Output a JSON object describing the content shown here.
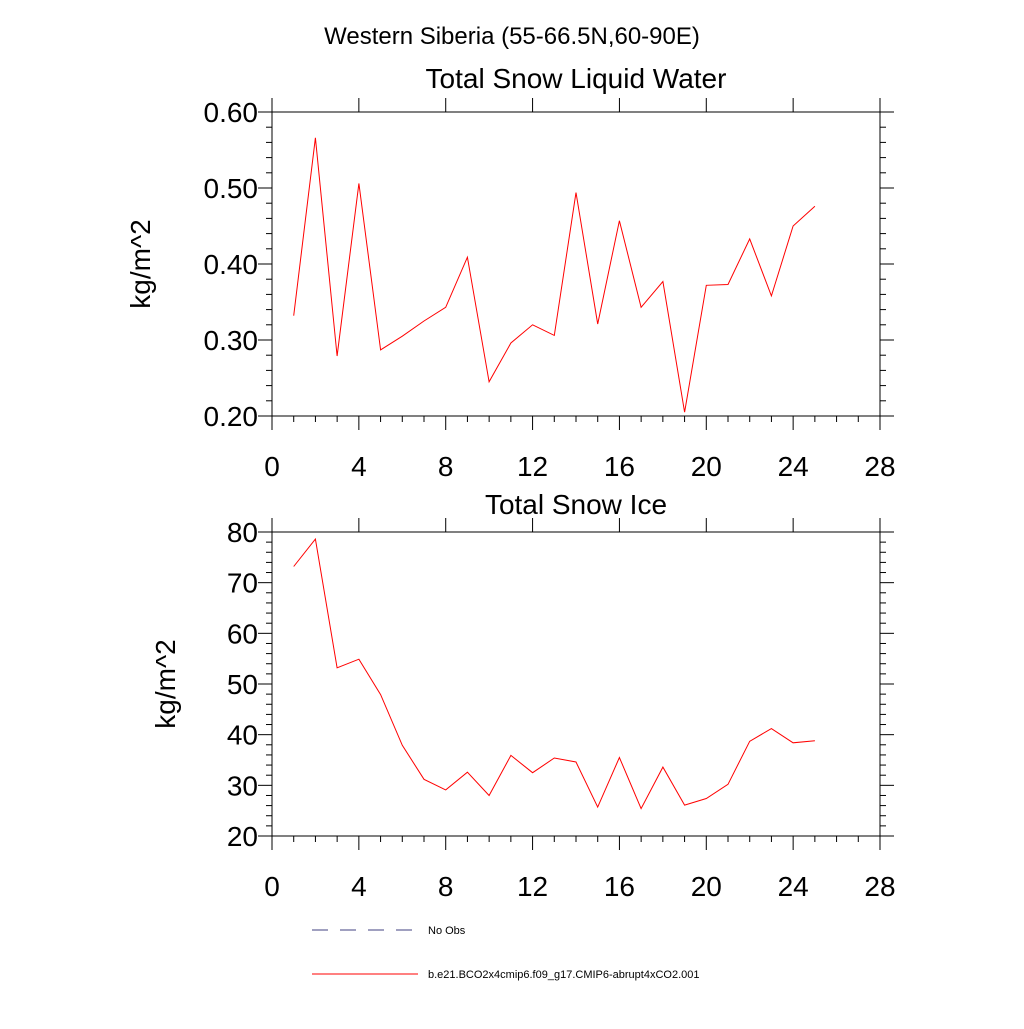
{
  "figure_title": "Western Siberia (55-66.5N,60-90E)",
  "colors": {
    "series": "#ff0000",
    "obs": "#404080",
    "axis": "#000000"
  },
  "legend": {
    "obs_label": "No Obs",
    "model_label": "b.e21.BCO2x4cmip6.f09_g17.CMIP6-abrupt4xCO2.001"
  },
  "chart_data": [
    {
      "type": "line",
      "title": "Total Snow Liquid Water",
      "xlabel": "",
      "ylabel": "kg/m^2",
      "xlim": [
        0,
        28
      ],
      "ylim": [
        0.2,
        0.6
      ],
      "xticks": [
        0,
        4,
        8,
        12,
        16,
        20,
        24,
        28
      ],
      "xtick_labels": [
        "0",
        "4",
        "8",
        "12",
        "16",
        "20",
        "24",
        "28"
      ],
      "yticks": [
        0.2,
        0.3,
        0.4,
        0.5,
        0.6
      ],
      "ytick_labels": [
        "0.20",
        "0.30",
        "0.40",
        "0.50",
        "0.60"
      ],
      "series": [
        {
          "name": "b.e21.BCO2x4cmip6.f09_g17.CMIP6-abrupt4xCO2.001",
          "x": [
            1,
            2,
            3,
            4,
            5,
            6,
            7,
            8,
            9,
            10,
            11,
            12,
            13,
            14,
            15,
            16,
            17,
            18,
            19,
            20,
            21,
            22,
            23,
            24,
            25
          ],
          "values": [
            0.332,
            0.566,
            0.279,
            0.506,
            0.287,
            0.305,
            0.325,
            0.343,
            0.409,
            0.245,
            0.296,
            0.32,
            0.306,
            0.494,
            0.321,
            0.457,
            0.343,
            0.377,
            0.205,
            0.372,
            0.373,
            0.433,
            0.358,
            0.45,
            0.476
          ]
        }
      ]
    },
    {
      "type": "line",
      "title": "Total Snow Ice",
      "xlabel": "",
      "ylabel": "kg/m^2",
      "xlim": [
        0,
        28
      ],
      "ylim": [
        20,
        80
      ],
      "xticks": [
        0,
        4,
        8,
        12,
        16,
        20,
        24,
        28
      ],
      "xtick_labels": [
        "0",
        "4",
        "8",
        "12",
        "16",
        "20",
        "24",
        "28"
      ],
      "yticks": [
        20,
        30,
        40,
        50,
        60,
        70,
        80
      ],
      "ytick_labels": [
        "20",
        "30",
        "40",
        "50",
        "60",
        "70",
        "80"
      ],
      "series": [
        {
          "name": "b.e21.BCO2x4cmip6.f09_g17.CMIP6-abrupt4xCO2.001",
          "x": [
            1,
            2,
            3,
            4,
            5,
            6,
            7,
            8,
            9,
            10,
            11,
            12,
            13,
            14,
            15,
            16,
            17,
            18,
            19,
            20,
            21,
            22,
            23,
            24,
            25
          ],
          "values": [
            73.2,
            78.6,
            53.2,
            54.9,
            47.9,
            37.9,
            31.2,
            29.1,
            32.6,
            28.0,
            35.9,
            32.5,
            35.4,
            34.6,
            25.7,
            35.5,
            25.4,
            33.6,
            26.1,
            27.4,
            30.2,
            38.7,
            41.2,
            38.4,
            38.8
          ]
        }
      ]
    }
  ]
}
